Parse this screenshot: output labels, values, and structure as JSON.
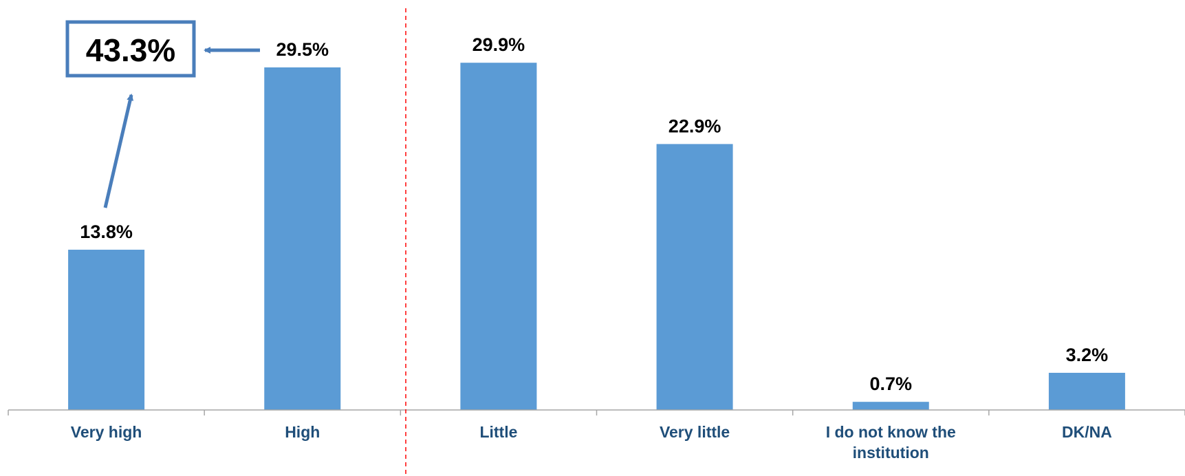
{
  "chart_data": {
    "type": "bar",
    "categories": [
      "Very high",
      "High",
      "Little",
      "Very little",
      "I do not know the institution",
      "DK/NA"
    ],
    "category_lines": [
      [
        "Very high"
      ],
      [
        "High"
      ],
      [
        "Little"
      ],
      [
        "Very little"
      ],
      [
        "I do not know the",
        "institution"
      ],
      [
        "DK/NA"
      ]
    ],
    "values": [
      13.8,
      29.5,
      29.9,
      22.9,
      0.7,
      3.2
    ],
    "value_labels": [
      "13.8%",
      "29.5%",
      "29.9%",
      "22.9%",
      "0.7%",
      "3.2%"
    ],
    "ylim": [
      0,
      34
    ],
    "grid": false,
    "legend": "none",
    "callout": {
      "text": "43.3%",
      "sum_of": [
        "Very high",
        "High"
      ]
    },
    "divider_after": "High"
  },
  "colors": {
    "bar": "#5b9bd5",
    "label_text": "#1f4e79",
    "axis": "#a6a6a6",
    "divider": "#ff0000",
    "callout_border": "#4a7ebb",
    "arrow": "#4a7ebb"
  }
}
